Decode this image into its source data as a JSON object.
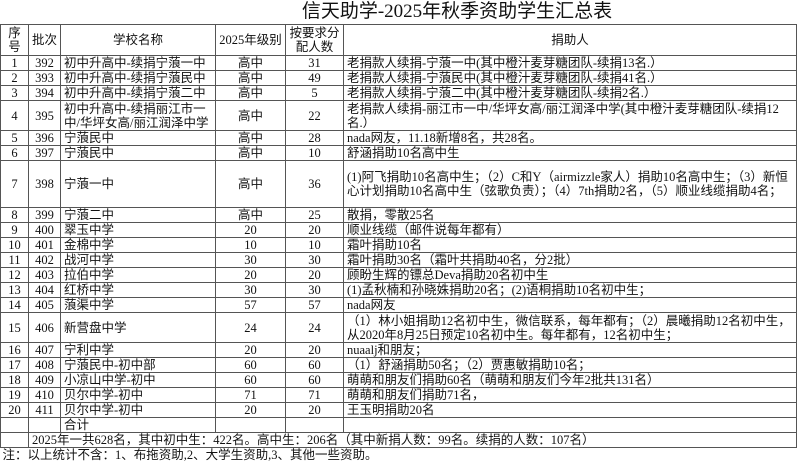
{
  "title": "信天助学-2025年秋季资助学生汇总表",
  "headers": {
    "no": "序号",
    "batch": "批次",
    "school": "学校名称",
    "level": "2025年级别",
    "count": "按要求分配人数",
    "donor": "捐助人"
  },
  "rows": [
    {
      "no": "1",
      "batch": "392",
      "school": "初中升高中-续捐宁蒗一中",
      "level": "高中",
      "count": "31",
      "donor": "老捐款人续捐-宁蒗一中(其中橙汁麦芽糖团队-续捐13名.）"
    },
    {
      "no": "2",
      "batch": "393",
      "school": "初中升高中-续捐宁蒗民中",
      "level": "高中",
      "count": "49",
      "donor": "老捐款人续捐-宁蒗民中(其中橙汁麦芽糖团队-续捐41名.）"
    },
    {
      "no": "3",
      "batch": "394",
      "school": "初中升高中-续捐宁蒗二中",
      "level": "高中",
      "count": "5",
      "donor": "老捐款人续捐-宁蒗二中(其中橙汁麦芽糖团队-续捐2名.）"
    },
    {
      "no": "4",
      "batch": "395",
      "school": "初中升高中-续捐丽江市一中/华坪女高/丽江润泽中学",
      "level": "高中",
      "count": "22",
      "donor": "老捐款人续捐-丽江市一中/华坪女高/丽江润泽中学(其中橙汁麦芽糖团队-续捐12名.）"
    },
    {
      "no": "5",
      "batch": "396",
      "school": "宁蒗民中",
      "level": "高中",
      "count": "28",
      "donor": "nada网友，11.18新增8名，共28名。"
    },
    {
      "no": "6",
      "batch": "397",
      "school": "宁蒗民中",
      "level": "高中",
      "count": "10",
      "donor": "舒涵捐助10名高中生"
    },
    {
      "no": "7",
      "batch": "398",
      "school": "宁蒗一中",
      "level": "高中",
      "count": "36",
      "donor": "(1)阿飞捐助10名高中生；（2）C和Y（airmizzle家人）捐助10名高中生；（3）新恒心计划捐助10名高中生（弦歌负责）；（4）7th捐助2名，（5）顺业线缆捐助4名；"
    },
    {
      "no": "8",
      "batch": "399",
      "school": "宁蒗二中",
      "level": "高中",
      "count": "25",
      "donor": "散捐，零散25名"
    },
    {
      "no": "9",
      "batch": "400",
      "school": "翠玉中学",
      "level": "20",
      "count": "20",
      "donor": "顺业线缆（邮件说每年都有）"
    },
    {
      "no": "10",
      "batch": "401",
      "school": "金棉中学",
      "level": "10",
      "count": "10",
      "donor": "霜叶捐助10名"
    },
    {
      "no": "11",
      "batch": "402",
      "school": "战河中学",
      "level": "30",
      "count": "30",
      "donor": "霜叶捐助30名（霜叶共捐助40名，分2批）"
    },
    {
      "no": "12",
      "batch": "403",
      "school": "拉伯中学",
      "level": "20",
      "count": "20",
      "donor": "顾盼生辉的镖总Deva捐助20名初中生"
    },
    {
      "no": "13",
      "batch": "404",
      "school": "红桥中学",
      "level": "30",
      "count": "30",
      "donor": "(1)孟秋楠和孙晓姝捐助20名；(2)语桐捐助10名初中生；"
    },
    {
      "no": "14",
      "batch": "405",
      "school": "蒗渠中学",
      "level": "57",
      "count": "57",
      "donor": "nada网友"
    },
    {
      "no": "15",
      "batch": "406",
      "school": "新营盘中学",
      "level": "24",
      "count": "24",
      "donor": "（1）林小姐捐助12名初中生，微信联系，每年都有；（2）晨曦捐助12名初中生，从2020年8月25日预定10名初中生。每年都有，12名初中生；"
    },
    {
      "no": "16",
      "batch": "407",
      "school": "宁利中学",
      "level": "20",
      "count": "20",
      "donor": "nuaalj和朋友；"
    },
    {
      "no": "17",
      "batch": "408",
      "school": "宁蒗民中-初中部",
      "level": "60",
      "count": "60",
      "donor": "（1）舒涵捐助50名；（2）贾惠敏捐助10名；"
    },
    {
      "no": "18",
      "batch": "409",
      "school": "小凉山中学-初中",
      "level": "60",
      "count": "60",
      "donor": "萌萌和朋友们捐助60名（萌萌和朋友们今年2批共131名）"
    },
    {
      "no": "19",
      "batch": "410",
      "school": "贝尔中学-初中",
      "level": "71",
      "count": "71",
      "donor": "萌萌和朋友们捐助71名，"
    },
    {
      "no": "20",
      "batch": "411",
      "school": "贝尔中学-初中",
      "level": "20",
      "count": "20",
      "donor": "王玉明捐助20名"
    }
  ],
  "total_label": "合计",
  "summary": "2025年一共628名，其中初中生：422名。高中生：206名（其中新捐人数：99名。续捐的人数：107名）",
  "note": "注：以上统计不含：1、布拖资助,2、大学生资助,3、其他一些资助。"
}
